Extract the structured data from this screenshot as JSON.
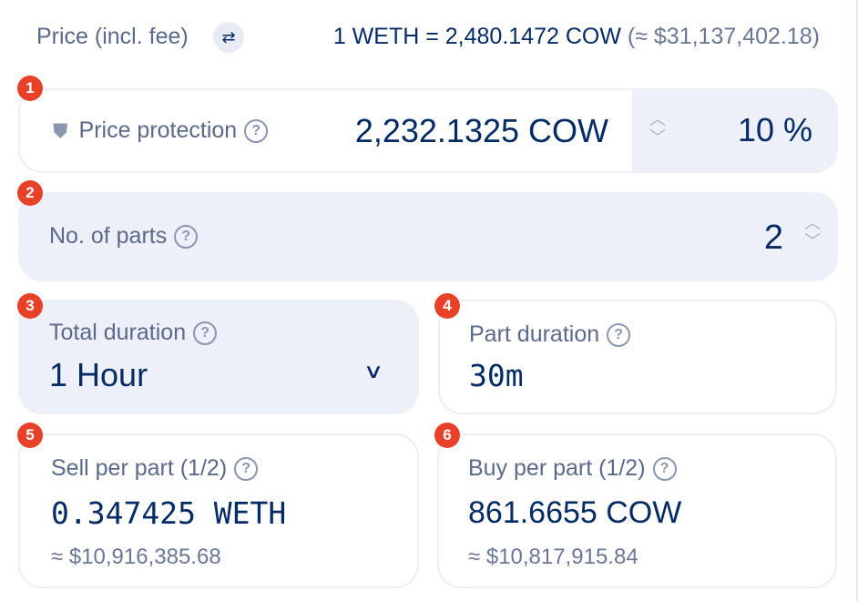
{
  "price_row": {
    "label": "Price (incl. fee)",
    "swap_icon": "swap-arrows-icon",
    "rate": "1 WETH = 2,480.1472 COW",
    "fiat": "(≈ $31,137,402.18)"
  },
  "price_protection": {
    "step": "1",
    "label": "Price protection",
    "icon": "shield-icon",
    "value": "2,232.1325 COW",
    "percent": "10 %"
  },
  "parts": {
    "step": "2",
    "label": "No. of parts",
    "value": "2"
  },
  "total_duration": {
    "step": "3",
    "label": "Total duration",
    "value": "1 Hour"
  },
  "part_duration": {
    "step": "4",
    "label": "Part duration",
    "value": "30m"
  },
  "sell_per_part": {
    "step": "5",
    "label": "Sell per part (1/2)",
    "value": "0.347425 WETH",
    "fiat": "≈ $10,916,385.68"
  },
  "buy_per_part": {
    "step": "6",
    "label": "Buy per part (1/2)",
    "value": "861.6655 COW",
    "fiat": "≈ $10,817,915.84"
  },
  "colors": {
    "accent_badge": "#e8412a",
    "text_primary": "#052b65",
    "panel_gray": "#edf0f8"
  }
}
